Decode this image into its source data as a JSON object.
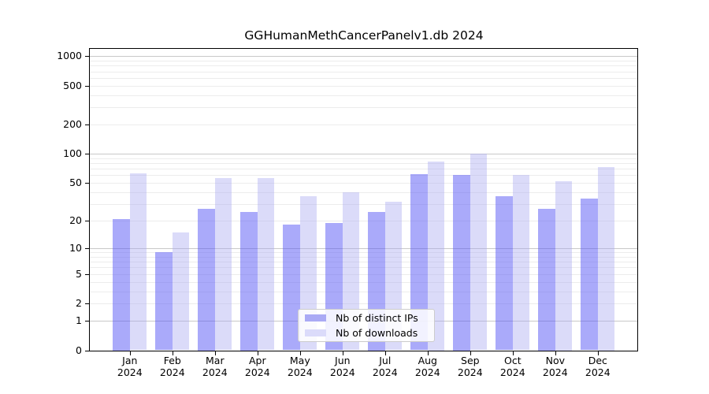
{
  "chart_data": {
    "type": "bar",
    "title": "GGHumanMethCancerPanelv1.db 2024",
    "categories": [
      "Jan",
      "Feb",
      "Mar",
      "Apr",
      "May",
      "Jun",
      "Jul",
      "Aug",
      "Sep",
      "Oct",
      "Nov",
      "Dec"
    ],
    "category_year_line": "2024",
    "series": [
      {
        "name": "Nb of distinct IPs",
        "color": "#aaaaf5",
        "fill": "rgba(85,85,245,0.5)",
        "values": [
          21,
          9,
          27,
          25,
          18,
          19,
          25,
          62,
          61,
          36,
          27,
          34
        ]
      },
      {
        "name": "Nb of downloads",
        "color": "#dbdbfa",
        "fill": "rgba(170,170,240,0.42)",
        "values": [
          63,
          15,
          56,
          56,
          36,
          40,
          32,
          84,
          100,
          60,
          52,
          73
        ]
      }
    ],
    "xlabel": "",
    "ylabel": "",
    "yscale": "log10(v+1)",
    "ytick_labels": [
      "1000",
      "500",
      "200",
      "100",
      "50",
      "20",
      "10",
      "5",
      "2",
      "1",
      "0"
    ],
    "ylim": [
      0,
      1216
    ],
    "grid": "on",
    "grid_major_values": [
      1,
      10,
      100,
      1000
    ],
    "grid_major_color": "#c8c8c8",
    "grid_minor_color": "#ececec",
    "legend_position": "lower center"
  }
}
